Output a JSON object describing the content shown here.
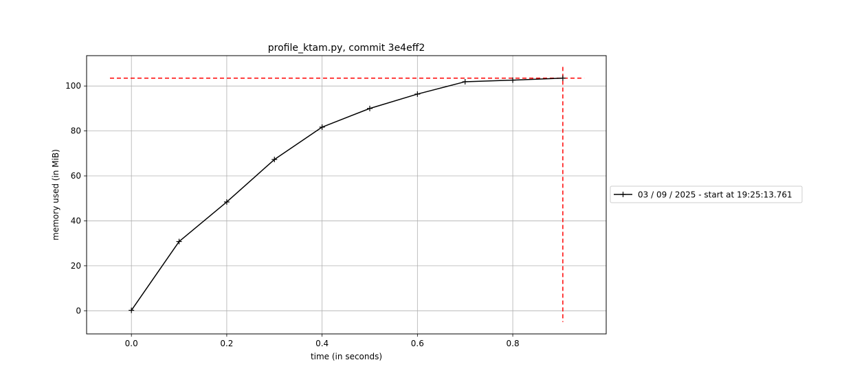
{
  "chart_data": {
    "type": "line",
    "title": "profile_ktam.py, commit 3e4eff2",
    "xlabel": "time (in seconds)",
    "ylabel": "memory used (in MiB)",
    "xlim": [
      -0.094,
      0.996
    ],
    "ylim": [
      -10.3,
      113.5
    ],
    "xticks": [
      0.0,
      0.2,
      0.4,
      0.6,
      0.8
    ],
    "xtick_labels": [
      "0.0",
      "0.2",
      "0.4",
      "0.6",
      "0.8"
    ],
    "yticks": [
      0,
      20,
      40,
      60,
      80,
      100
    ],
    "ytick_labels": [
      "0",
      "20",
      "40",
      "60",
      "80",
      "100"
    ],
    "grid": true,
    "legend_position": "right-outside",
    "series": [
      {
        "name": "03 / 09 / 2025 - start at 19:25:13.761",
        "color": "#000000",
        "marker": "plus",
        "x": [
          0.0,
          0.1,
          0.2,
          0.3,
          0.4,
          0.5,
          0.6,
          0.7,
          0.8,
          0.905
        ],
        "y": [
          0.2,
          30.8,
          48.4,
          67.3,
          81.7,
          90.0,
          96.4,
          101.9,
          102.6,
          103.5
        ]
      }
    ],
    "reference_lines": {
      "color": "#ff0000",
      "style": "dashed",
      "max_memory_y": 103.5,
      "max_memory_x_range": [
        -0.045,
        0.95
      ],
      "end_time_x": 0.905,
      "end_time_y_range": [
        -5.0,
        108.5
      ]
    }
  }
}
